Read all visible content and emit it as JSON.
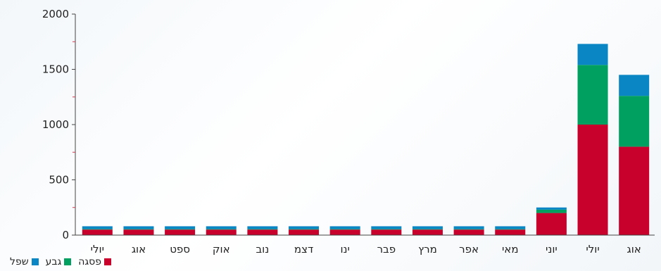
{
  "chart_data": {
    "type": "bar",
    "stacked": true,
    "title": "",
    "xlabel": "",
    "ylabel": "",
    "ylim": [
      0,
      2000
    ],
    "yticks": [
      0,
      500,
      1000,
      1500,
      2000
    ],
    "categories": [
      "יולי",
      "אוג",
      "ספט",
      "אוק",
      "נוב",
      "דצמ",
      "ינו",
      "פבר",
      "מרץ",
      "אפר",
      "מאי",
      "יוני",
      "יולי",
      "אוג"
    ],
    "series": [
      {
        "name": "פסגה",
        "color": "#c8002c",
        "values": [
          50,
          50,
          50,
          50,
          50,
          50,
          50,
          50,
          50,
          50,
          50,
          200,
          1000,
          800
        ]
      },
      {
        "name": "גבע",
        "color": "#00a060",
        "values": [
          5,
          5,
          5,
          5,
          5,
          5,
          5,
          5,
          5,
          5,
          5,
          30,
          540,
          460
        ]
      },
      {
        "name": "שפל",
        "color": "#0a86c4",
        "values": [
          25,
          25,
          25,
          25,
          25,
          25,
          25,
          25,
          25,
          25,
          25,
          20,
          190,
          190
        ]
      }
    ],
    "grid": false,
    "legend_position": "bottom-left"
  }
}
